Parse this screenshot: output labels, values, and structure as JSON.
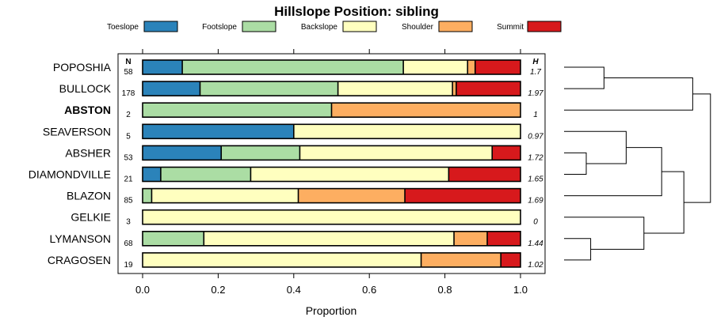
{
  "chart_data": {
    "type": "bar",
    "orientation": "horizontal-stacked",
    "title": "Hillslope Position: sibling",
    "xlabel": "Proportion",
    "xlim": [
      0,
      1
    ],
    "xticks": [
      "0.0",
      "0.2",
      "0.4",
      "0.6",
      "0.8",
      "1.0"
    ],
    "legend_position": "top",
    "n_header": "N",
    "h_header": "H",
    "series": [
      {
        "name": "Toeslope",
        "color": "#2b83ba"
      },
      {
        "name": "Footslope",
        "color": "#abdda4"
      },
      {
        "name": "Backslope",
        "color": "#ffffbf"
      },
      {
        "name": "Shoulder",
        "color": "#fdae61"
      },
      {
        "name": "Summit",
        "color": "#d7191c"
      }
    ],
    "categories": [
      {
        "name": "POPOSHIA",
        "bold": false,
        "n": "58",
        "h": "1.7",
        "values": [
          0.105,
          0.585,
          0.17,
          0.02,
          0.12
        ]
      },
      {
        "name": "BULLOCK",
        "bold": false,
        "n": "178",
        "h": "1.97",
        "values": [
          0.152,
          0.365,
          0.303,
          0.01,
          0.17
        ]
      },
      {
        "name": "ABSTON",
        "bold": true,
        "n": "2",
        "h": "1",
        "values": [
          0.0,
          0.5,
          0.0,
          0.5,
          0.0
        ]
      },
      {
        "name": "SEAVERSON",
        "bold": false,
        "n": "5",
        "h": "0.97",
        "values": [
          0.4,
          0.0,
          0.6,
          0.0,
          0.0
        ]
      },
      {
        "name": "ABSHER",
        "bold": false,
        "n": "53",
        "h": "1.72",
        "values": [
          0.208,
          0.208,
          0.509,
          0.0,
          0.075
        ]
      },
      {
        "name": "DIAMONDVILLE",
        "bold": false,
        "n": "21",
        "h": "1.65",
        "values": [
          0.048,
          0.238,
          0.524,
          0.0,
          0.19
        ]
      },
      {
        "name": "BLAZON",
        "bold": false,
        "n": "85",
        "h": "1.69",
        "values": [
          0.0,
          0.024,
          0.388,
          0.282,
          0.306
        ]
      },
      {
        "name": "GELKIE",
        "bold": false,
        "n": "3",
        "h": "0",
        "values": [
          0.0,
          0.0,
          1.0,
          0.0,
          0.0
        ]
      },
      {
        "name": "LYMANSON",
        "bold": false,
        "n": "68",
        "h": "1.44",
        "values": [
          0.0,
          0.162,
          0.662,
          0.088,
          0.088
        ]
      },
      {
        "name": "CRAGOSEN",
        "bold": false,
        "n": "19",
        "h": "1.02",
        "values": [
          0.0,
          0.0,
          0.737,
          0.211,
          0.052
        ]
      }
    ],
    "dendrogram": {
      "merges": [
        {
          "a": "leaf:0",
          "b": "leaf:1",
          "height": 0.18
        },
        {
          "a": "merge:0",
          "b": "leaf:2",
          "height": 0.58
        },
        {
          "a": "leaf:4",
          "b": "leaf:5",
          "height": 0.1
        },
        {
          "a": "leaf:3",
          "b": "merge:2",
          "height": 0.28
        },
        {
          "a": "merge:3",
          "b": "leaf:6",
          "height": 0.44
        },
        {
          "a": "leaf:8",
          "b": "leaf:9",
          "height": 0.12
        },
        {
          "a": "leaf:7",
          "b": "merge:5",
          "height": 0.36
        },
        {
          "a": "merge:4",
          "b": "merge:6",
          "height": 0.54
        },
        {
          "a": "merge:1",
          "b": "merge:7",
          "height": 0.66
        }
      ]
    }
  }
}
